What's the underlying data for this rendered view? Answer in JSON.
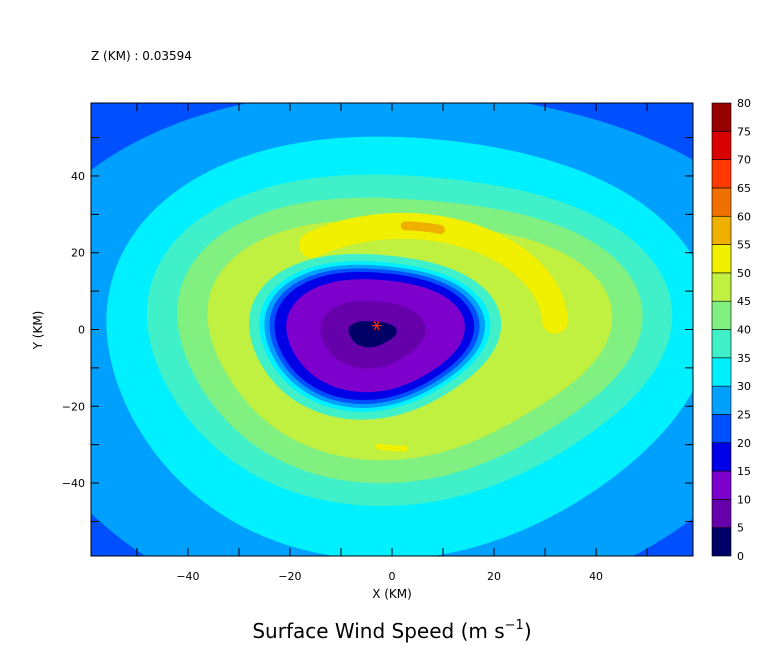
{
  "chart_data": {
    "type": "heatmap",
    "subtitle": "Z (KM) : 0.03594",
    "title": "Surface Wind Speed (m s",
    "title_superscript": "−1",
    "title_close": ")",
    "xlabel": "X (KM)",
    "ylabel": "Y (KM)",
    "xlim": [
      -59,
      59
    ],
    "ylim": [
      -59,
      59
    ],
    "x_ticks": [
      -40,
      -20,
      0,
      20,
      40
    ],
    "y_ticks": [
      -40,
      -20,
      0,
      20,
      40
    ],
    "x_tick_labels": [
      "−40",
      "−20",
      "0",
      "20",
      "40"
    ],
    "y_tick_labels": [
      "−40",
      "−20",
      "0",
      "20",
      "40"
    ],
    "grid": false,
    "legend": "colorbar on right",
    "colorbar": {
      "levels": [
        "0",
        "5",
        "10",
        "15",
        "20",
        "25",
        "30",
        "35",
        "40",
        "45",
        "50",
        "55",
        "60",
        "65",
        "70",
        "75",
        "80"
      ],
      "colors": [
        "#000066",
        "#6600aa",
        "#7e00cc",
        "#0000e6",
        "#0050ff",
        "#00a0ff",
        "#00f0ff",
        "#40f0c8",
        "#80f080",
        "#c0f040",
        "#f0f000",
        "#f0b000",
        "#f07000",
        "#ff3800",
        "#d80000",
        "#960000"
      ]
    },
    "storm_center": {
      "x": -3,
      "y": 1,
      "marker": "*",
      "color": "#ff3300"
    },
    "field": {
      "description_levels_ms": [
        0,
        5,
        10,
        15,
        20,
        25,
        30,
        35,
        40,
        45,
        50,
        55
      ],
      "max_wind_region": {
        "x": [
          10,
          35
        ],
        "y": [
          15,
          32
        ],
        "value_range": [
          50,
          60
        ]
      },
      "eye_center": {
        "x": -4,
        "y": -1
      }
    }
  }
}
